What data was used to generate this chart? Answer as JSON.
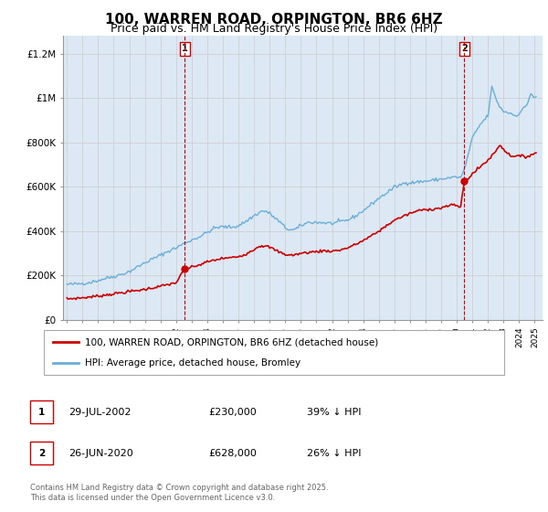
{
  "title": "100, WARREN ROAD, ORPINGTON, BR6 6HZ",
  "subtitle": "Price paid vs. HM Land Registry's House Price Index (HPI)",
  "title_fontsize": 11,
  "subtitle_fontsize": 9,
  "ylabel_ticks": [
    "£0",
    "£200K",
    "£400K",
    "£600K",
    "£800K",
    "£1M",
    "£1.2M"
  ],
  "ytick_values": [
    0,
    200000,
    400000,
    600000,
    800000,
    1000000,
    1200000
  ],
  "ylim": [
    0,
    1280000
  ],
  "xlim_start": 1994.75,
  "xlim_end": 2025.5,
  "grid_color": "#cccccc",
  "bg_color": "#dce9f5",
  "hpi_color": "#6aaed6",
  "price_color": "#cc0000",
  "marker1_x": 2002.56,
  "marker1_y": 230000,
  "marker2_x": 2020.49,
  "marker2_y": 628000,
  "legend_label_price": "100, WARREN ROAD, ORPINGTON, BR6 6HZ (detached house)",
  "legend_label_hpi": "HPI: Average price, detached house, Bromley",
  "footnote": "Contains HM Land Registry data © Crown copyright and database right 2025.\nThis data is licensed under the Open Government Licence v3.0."
}
